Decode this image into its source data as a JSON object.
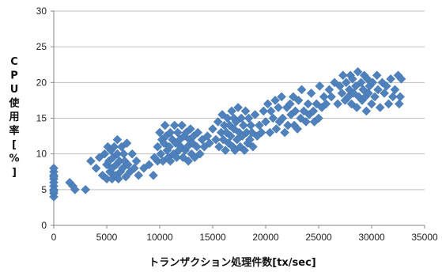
{
  "chart_data": {
    "type": "scatter",
    "title": "",
    "xlabel": "トランザクション処理件数[tx/sec]",
    "ylabel": "CPU使用率[%]",
    "xlim": [
      0,
      35000
    ],
    "ylim": [
      0,
      30
    ],
    "x_ticks": [
      "0",
      "5000",
      "10000",
      "15000",
      "20000",
      "25000",
      "30000",
      "35000"
    ],
    "y_ticks": [
      "0",
      "5",
      "10",
      "15",
      "20",
      "25",
      "30"
    ],
    "grid": "horizontal",
    "legend": "none",
    "marker": "diamond",
    "color": "#4F81BD",
    "series": [
      {
        "points": [
          [
            0,
            4
          ],
          [
            0,
            4.5
          ],
          [
            0,
            5
          ],
          [
            0,
            5.5
          ],
          [
            0,
            6
          ],
          [
            0,
            6.5
          ],
          [
            0,
            7
          ],
          [
            0,
            7.5
          ],
          [
            0,
            8
          ],
          [
            0,
            4.8
          ],
          [
            0,
            6.8
          ],
          [
            1500,
            6
          ],
          [
            1800,
            5.5
          ],
          [
            2000,
            5
          ],
          [
            3000,
            5
          ],
          [
            3500,
            9
          ],
          [
            4000,
            8
          ],
          [
            4300,
            9.5
          ],
          [
            4600,
            7
          ],
          [
            4800,
            10
          ],
          [
            5000,
            8.5
          ],
          [
            5000,
            6.5
          ],
          [
            5100,
            11
          ],
          [
            5200,
            9
          ],
          [
            5300,
            7.5
          ],
          [
            5400,
            10.5
          ],
          [
            5500,
            8
          ],
          [
            5500,
            6.5
          ],
          [
            5600,
            9.5
          ],
          [
            5700,
            11
          ],
          [
            5800,
            7
          ],
          [
            5900,
            8.5
          ],
          [
            6000,
            10
          ],
          [
            6000,
            12
          ],
          [
            6100,
            6.5
          ],
          [
            6200,
            9
          ],
          [
            6300,
            7.5
          ],
          [
            6400,
            11
          ],
          [
            6500,
            8
          ],
          [
            6600,
            10
          ],
          [
            6700,
            9
          ],
          [
            6800,
            6.8
          ],
          [
            6900,
            11.5
          ],
          [
            7000,
            8.5
          ],
          [
            7200,
            7.5
          ],
          [
            7400,
            10
          ],
          [
            7600,
            8
          ],
          [
            7800,
            9
          ],
          [
            8000,
            7
          ],
          [
            8500,
            8
          ],
          [
            9000,
            8.5
          ],
          [
            9400,
            7
          ],
          [
            9800,
            9
          ],
          [
            9500,
            9.5
          ],
          [
            9800,
            11
          ],
          [
            10000,
            13
          ],
          [
            10100,
            10
          ],
          [
            10200,
            12
          ],
          [
            10300,
            9
          ],
          [
            10400,
            11.5
          ],
          [
            10500,
            14
          ],
          [
            10600,
            12.5
          ],
          [
            10700,
            10.5
          ],
          [
            10800,
            9.5
          ],
          [
            10900,
            11
          ],
          [
            11000,
            13
          ],
          [
            11000,
            9
          ],
          [
            11200,
            12
          ],
          [
            11300,
            10
          ],
          [
            11400,
            14
          ],
          [
            11500,
            11.5
          ],
          [
            11600,
            9.5
          ],
          [
            11700,
            13
          ],
          [
            11800,
            10.5
          ],
          [
            11900,
            12
          ],
          [
            12000,
            11
          ],
          [
            12100,
            14
          ],
          [
            12200,
            9.5
          ],
          [
            12300,
            12.5
          ],
          [
            12400,
            10.5
          ],
          [
            12500,
            13
          ],
          [
            12600,
            11
          ],
          [
            12700,
            9
          ],
          [
            12800,
            12
          ],
          [
            12900,
            13.5
          ],
          [
            13000,
            10
          ],
          [
            13100,
            11.5
          ],
          [
            13200,
            12.5
          ],
          [
            13300,
            9.5
          ],
          [
            13500,
            11
          ],
          [
            13600,
            13
          ],
          [
            13800,
            10
          ],
          [
            14000,
            12
          ],
          [
            14200,
            11
          ],
          [
            14500,
            12.5
          ],
          [
            14700,
            11.5
          ],
          [
            15000,
            13.5
          ],
          [
            15300,
            12
          ],
          [
            15500,
            14.5
          ],
          [
            15600,
            11
          ],
          [
            15800,
            13
          ],
          [
            15900,
            15.5
          ],
          [
            16000,
            12
          ],
          [
            16100,
            14
          ],
          [
            16200,
            10.5
          ],
          [
            16300,
            13
          ],
          [
            16400,
            15
          ],
          [
            16500,
            11.5
          ],
          [
            16600,
            14
          ],
          [
            16700,
            12.5
          ],
          [
            16800,
            16
          ],
          [
            16900,
            11
          ],
          [
            17000,
            13.5
          ],
          [
            17000,
            15
          ],
          [
            17100,
            10.5
          ],
          [
            17200,
            14.5
          ],
          [
            17300,
            12
          ],
          [
            17400,
            16.5
          ],
          [
            17500,
            13
          ],
          [
            17600,
            11
          ],
          [
            17700,
            15
          ],
          [
            17800,
            12.5
          ],
          [
            17900,
            14
          ],
          [
            18000,
            10.5
          ],
          [
            18100,
            16
          ],
          [
            18200,
            13
          ],
          [
            18300,
            11.5
          ],
          [
            18400,
            15
          ],
          [
            18500,
            12
          ],
          [
            18600,
            14
          ],
          [
            18700,
            13
          ],
          [
            18800,
            11
          ],
          [
            19000,
            15.5
          ],
          [
            19200,
            12.5
          ],
          [
            19400,
            14
          ],
          [
            19600,
            13
          ],
          [
            19800,
            16
          ],
          [
            20000,
            14.5
          ],
          [
            20200,
            17
          ],
          [
            20400,
            13
          ],
          [
            20500,
            16
          ],
          [
            20700,
            15
          ],
          [
            20900,
            17.5
          ],
          [
            21000,
            13.5
          ],
          [
            21200,
            16.5
          ],
          [
            21300,
            14.5
          ],
          [
            21500,
            18
          ],
          [
            21600,
            15
          ],
          [
            21800,
            13
          ],
          [
            22000,
            16.5
          ],
          [
            22100,
            14
          ],
          [
            22300,
            17
          ],
          [
            22400,
            15.5
          ],
          [
            22600,
            18
          ],
          [
            22700,
            14
          ],
          [
            22800,
            16
          ],
          [
            23000,
            13.5
          ],
          [
            23100,
            17.5
          ],
          [
            23300,
            15
          ],
          [
            23400,
            19
          ],
          [
            23600,
            16
          ],
          [
            23800,
            14.5
          ],
          [
            24000,
            17
          ],
          [
            24100,
            15.5
          ],
          [
            24300,
            18.5
          ],
          [
            24500,
            16
          ],
          [
            24600,
            14.5
          ],
          [
            24800,
            17
          ],
          [
            25000,
            15
          ],
          [
            25100,
            19.5
          ],
          [
            25300,
            16.5
          ],
          [
            25500,
            18
          ],
          [
            25700,
            17
          ],
          [
            26000,
            19
          ],
          [
            26200,
            18
          ],
          [
            26500,
            20
          ],
          [
            26800,
            17
          ],
          [
            27000,
            19.5
          ],
          [
            27200,
            18.5
          ],
          [
            27300,
            21
          ],
          [
            27500,
            17.5
          ],
          [
            27600,
            20
          ],
          [
            27800,
            18
          ],
          [
            27900,
            19
          ],
          [
            28000,
            21
          ],
          [
            28100,
            17
          ],
          [
            28200,
            20.5
          ],
          [
            28300,
            18.5
          ],
          [
            28500,
            19.5
          ],
          [
            28600,
            16.5
          ],
          [
            28700,
            21.5
          ],
          [
            28800,
            18
          ],
          [
            29000,
            20
          ],
          [
            29100,
            17.5
          ],
          [
            29200,
            19
          ],
          [
            29300,
            21
          ],
          [
            29400,
            18
          ],
          [
            29500,
            16
          ],
          [
            29600,
            20.5
          ],
          [
            29700,
            18.5
          ],
          [
            29800,
            19.5
          ],
          [
            30000,
            17
          ],
          [
            30100,
            20
          ],
          [
            30300,
            18
          ],
          [
            30500,
            21
          ],
          [
            30600,
            19
          ],
          [
            30800,
            16.5
          ],
          [
            31000,
            20
          ],
          [
            31200,
            18.5
          ],
          [
            31400,
            19.5
          ],
          [
            31600,
            17
          ],
          [
            31800,
            20.5
          ],
          [
            32000,
            18
          ],
          [
            32200,
            19
          ],
          [
            32500,
            21
          ],
          [
            32600,
            17
          ],
          [
            32700,
            18
          ],
          [
            32800,
            20.5
          ]
        ]
      }
    ]
  }
}
